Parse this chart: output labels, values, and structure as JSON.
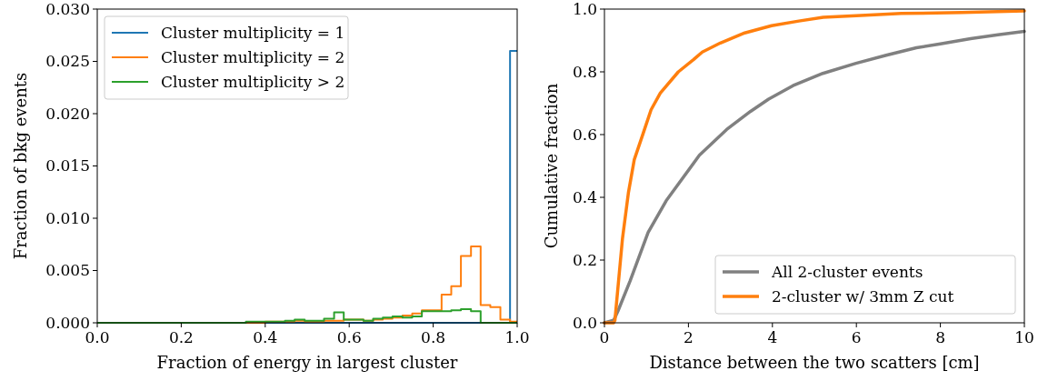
{
  "chart_data": [
    {
      "type": "histogram",
      "xlabel": "Fraction of energy in largest cluster",
      "ylabel": "Fraction of bkg events",
      "xlim": [
        0,
        1
      ],
      "ylim": [
        0,
        0.03
      ],
      "xticks": [
        {
          "value": 0,
          "label": "0.0"
        },
        {
          "value": 0.2,
          "label": "0.2"
        },
        {
          "value": 0.4,
          "label": "0.4"
        },
        {
          "value": 0.6,
          "label": "0.6"
        },
        {
          "value": 0.8,
          "label": "0.8"
        },
        {
          "value": 1,
          "label": "1.0"
        }
      ],
      "yticks": [
        {
          "value": 0,
          "label": "0.000"
        },
        {
          "value": 0.005,
          "label": "0.005"
        },
        {
          "value": 0.01,
          "label": "0.010"
        },
        {
          "value": 0.015,
          "label": "0.015"
        },
        {
          "value": 0.02,
          "label": "0.020"
        },
        {
          "value": 0.025,
          "label": "0.025"
        },
        {
          "value": 0.03,
          "label": "0.030"
        }
      ],
      "bins": [
        0,
        0.354,
        0.377,
        0.4,
        0.424,
        0.447,
        0.47,
        0.494,
        0.517,
        0.54,
        0.564,
        0.587,
        0.61,
        0.634,
        0.657,
        0.68,
        0.703,
        0.727,
        0.75,
        0.773,
        0.797,
        0.82,
        0.843,
        0.866,
        0.89,
        0.913,
        0.936,
        0.96,
        0.983,
        1
      ],
      "series": [
        {
          "name": "Cluster multiplicity = 1",
          "color": "#1f77b4",
          "values": [
            0,
            0,
            0,
            0,
            0,
            0,
            0,
            0,
            0,
            0,
            0,
            0,
            0,
            0,
            0,
            0,
            0,
            0,
            0,
            0,
            0,
            0,
            0,
            0,
            0,
            0,
            0,
            0,
            0.026
          ]
        },
        {
          "name": "Cluster multiplicity = 2",
          "color": "#ff7f0e",
          "values": [
            0,
            0,
            0,
            0.0001,
            0.0001,
            0.0001,
            0.0002,
            0.0001,
            0.0001,
            0.0002,
            0.0002,
            0.0003,
            0.0003,
            0.0002,
            0.0003,
            0.0004,
            0.0005,
            0.0007,
            0.0009,
            0.0012,
            0.0012,
            0.0027,
            0.0035,
            0.0064,
            0.0073,
            0.0017,
            0.0015,
            0.0003,
            0.0001
          ]
        },
        {
          "name": "Cluster multiplicity > 2",
          "color": "#2ca02c",
          "values": [
            0,
            0.0001,
            0.0001,
            0.0001,
            0.0001,
            0.0002,
            0.0003,
            0.0002,
            0.0002,
            0.0004,
            0.001,
            0.0003,
            0.0003,
            0.0002,
            0.0004,
            0.0005,
            0.0006,
            0.0005,
            0.0006,
            0.0011,
            0.0011,
            0.0011,
            0.0012,
            0.0013,
            0.0011,
            0,
            0,
            0,
            0
          ]
        }
      ],
      "legend": "top left"
    },
    {
      "type": "line",
      "xlabel": "Distance between the two scatters [cm]",
      "ylabel": "Cumulative fraction",
      "xlim": [
        0,
        10
      ],
      "ylim": [
        0,
        1
      ],
      "xticks": [
        0,
        2,
        4,
        6,
        8,
        10
      ],
      "yticks": [
        {
          "value": 0,
          "label": "0.0"
        },
        {
          "value": 0.2,
          "label": "0.2"
        },
        {
          "value": 0.4,
          "label": "0.4"
        },
        {
          "value": 0.6,
          "label": "0.6"
        },
        {
          "value": 0.8,
          "label": "0.8"
        },
        {
          "value": 1,
          "label": "1.0"
        }
      ],
      "series": [
        {
          "name": "All 2-cluster events",
          "color": "#808080",
          "x": [
            0,
            0.22,
            0.32,
            0.61,
            1.04,
            1.47,
            2.26,
            2.91,
            3.48,
            3.91,
            4.49,
            5.2,
            5.99,
            6.71,
            7.43,
            8.0,
            8.72,
            9.37,
            10
          ],
          "values": [
            0,
            0.008,
            0.037,
            0.133,
            0.288,
            0.389,
            0.534,
            0.616,
            0.674,
            0.713,
            0.756,
            0.795,
            0.827,
            0.853,
            0.877,
            0.889,
            0.906,
            0.918,
            0.929
          ]
        },
        {
          "name": "2-cluster w/ 3mm Z cut",
          "color": "#ff7f0e",
          "x": [
            0,
            0.22,
            0.25,
            0.43,
            0.57,
            0.71,
            0.93,
            1.11,
            1.33,
            1.76,
            2.12,
            2.33,
            2.76,
            3.34,
            3.98,
            4.63,
            5.21,
            6.0,
            7.07,
            8.51,
            10
          ],
          "values": [
            0,
            0,
            0.008,
            0.269,
            0.414,
            0.52,
            0.607,
            0.679,
            0.732,
            0.8,
            0.839,
            0.863,
            0.892,
            0.924,
            0.947,
            0.962,
            0.974,
            0.979,
            0.986,
            0.989,
            0.994
          ]
        }
      ],
      "legend": "bottom right"
    }
  ]
}
